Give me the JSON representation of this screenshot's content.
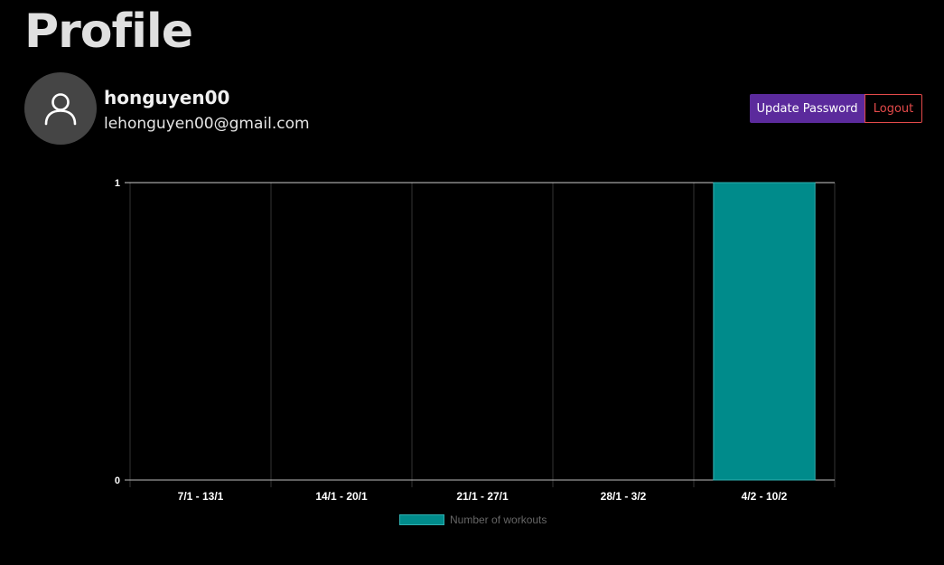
{
  "page": {
    "title": "Profile"
  },
  "user": {
    "username": "honguyen00",
    "email": "lehonguyen00@gmail.com",
    "avatar_icon": "user-icon"
  },
  "actions": {
    "update_password_label": "Update Password",
    "logout_label": "Logout"
  },
  "colors": {
    "background": "#000000",
    "primary": "#5b2a9c",
    "danger": "#e34a4a",
    "bar": "#008b8b",
    "bar_border": "#2fb0b0"
  },
  "chart_data": {
    "type": "bar",
    "categories": [
      "7/1 - 13/1",
      "14/1 - 20/1",
      "21/1 - 27/1",
      "28/1 - 3/2",
      "4/2 - 10/2"
    ],
    "series": [
      {
        "name": "Number of workouts",
        "values": [
          0,
          0,
          0,
          0,
          1
        ]
      }
    ],
    "ylim": [
      0,
      1
    ],
    "yticks": [
      0,
      1
    ],
    "title": "",
    "xlabel": "",
    "ylabel": "",
    "grid": true,
    "legend": "bottom"
  }
}
